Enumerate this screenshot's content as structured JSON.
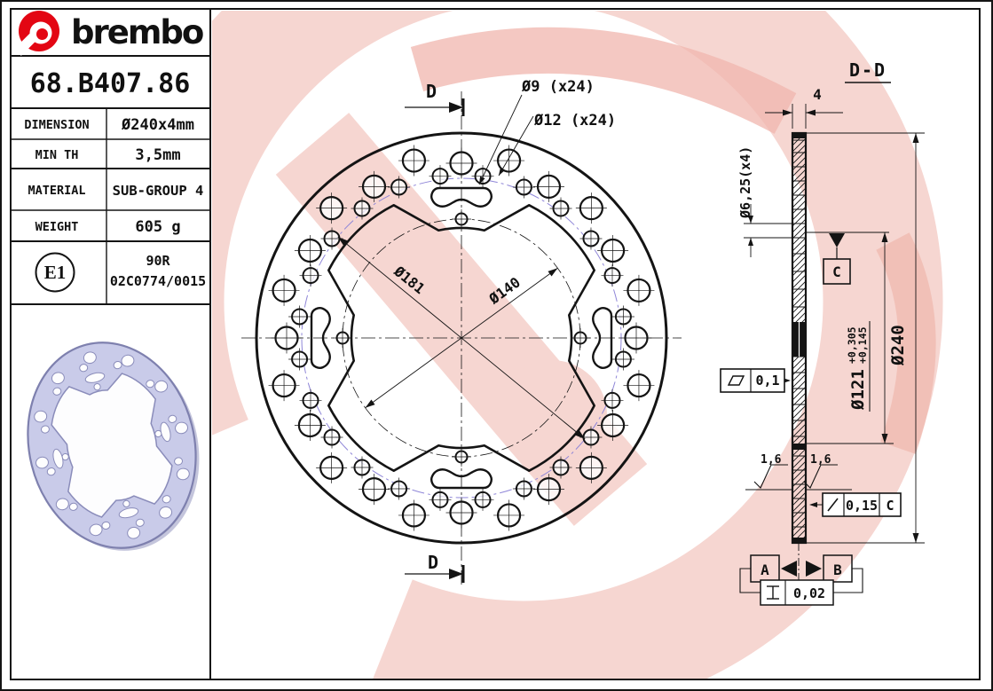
{
  "colors": {
    "brand_red": "#e30613",
    "watermark_pink": "#f6d6d1",
    "watermark_pink_strong": "#f0b6ad",
    "line_color": "#141414",
    "drill_circle_blue": "#8f86d8",
    "disc_render_fill": "#c9cbe9",
    "disc_render_edge": "#7e80ae"
  },
  "title_block": {
    "brand": "brembo",
    "part_number": "68.B407.86",
    "rows": [
      {
        "label": "DIMENSION",
        "value": "Ø240x4mm"
      },
      {
        "label": "MIN TH",
        "value": "3,5mm"
      },
      {
        "label": "MATERIAL",
        "value": "SUB-GROUP 4"
      },
      {
        "label": "WEIGHT",
        "value": "605 g"
      }
    ],
    "homologation": {
      "mark": "E1",
      "line1": "90R",
      "line2": "02C0774/0015"
    }
  },
  "front_view": {
    "section_label_top": "D",
    "section_label_bottom": "D",
    "callout_small_holes": "Ø9 (x24)",
    "callout_large_holes": "Ø12 (x24)",
    "dim_drill_circle": "Ø181",
    "dim_bolt_circle": "Ø140"
  },
  "section_view": {
    "title": "D-D",
    "dim_thickness": "4",
    "dim_mount_holes": "Ø6,25(x4)",
    "dim_bore": "Ø121",
    "bore_tol_upper": "+0,305",
    "bore_tol_lower": "+0,145",
    "dim_outer": "Ø240",
    "flatness_tol": "0,1",
    "roughness_left": "1,6",
    "roughness_right": "1,6",
    "runout_tol": "0,15",
    "runout_datum": "C",
    "datum_a": "A",
    "datum_b": "B",
    "datum_c": "C",
    "parallel_tol": "0,02"
  }
}
